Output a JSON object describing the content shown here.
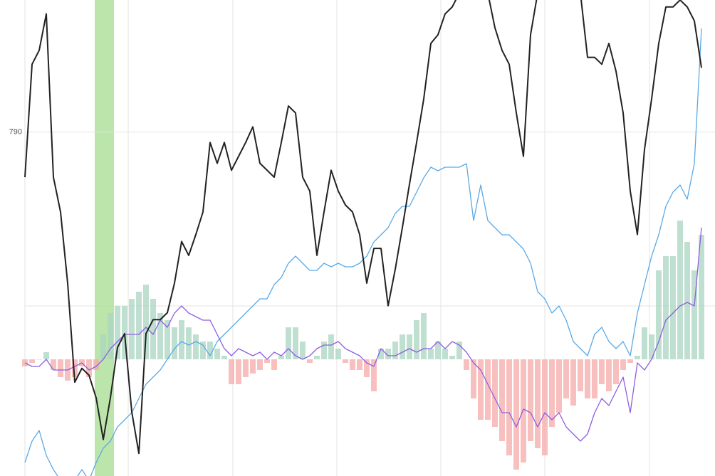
{
  "chart_data": {
    "type": "line",
    "ylim": [
      770.2,
      797.6
    ],
    "yticks": [
      790
    ],
    "y2lim": [
      -1.64,
      5.05
    ],
    "grid": true,
    "series": [
      {
        "type": "bar",
        "axis": "y2",
        "color": "#a9d6c0",
        "negative_color": "#f5a9a9",
        "values": [
          -0.1,
          -0.05,
          0,
          0.1,
          -0.15,
          -0.25,
          -0.3,
          -0.25,
          -0.1,
          -0.25,
          -0.15,
          0.35,
          0.65,
          0.75,
          0.75,
          0.85,
          0.95,
          1.05,
          0.85,
          0.65,
          0.55,
          0.45,
          0.55,
          0.45,
          0.35,
          0.25,
          0.25,
          0.15,
          0.05,
          -0.35,
          -0.35,
          -0.25,
          -0.2,
          -0.15,
          -0.05,
          -0.15,
          0.05,
          0.45,
          0.45,
          0.25,
          -0.05,
          0.05,
          0.25,
          0.35,
          0.15,
          -0.05,
          -0.15,
          -0.15,
          -0.25,
          -0.45,
          0.15,
          0.15,
          0.25,
          0.35,
          0.35,
          0.55,
          0.65,
          0.15,
          0.25,
          0.15,
          0.05,
          0.25,
          -0.15,
          -0.55,
          -0.85,
          -0.85,
          -0.95,
          -1.15,
          -1.35,
          -1.55,
          -1.45,
          -1.15,
          -1.25,
          -1.35,
          -0.95,
          -0.75,
          -0.55,
          -0.65,
          -0.45,
          -0.55,
          -0.55,
          -0.35,
          -0.45,
          -0.35,
          -0.15,
          -0.05,
          0.05,
          0.45,
          0.35,
          1.25,
          1.45,
          1.45,
          1.95,
          1.65,
          1.25,
          1.75
        ]
      },
      {
        "axis": "y2",
        "color": "#5aa9e6",
        "values": [
          -1.45,
          -1.15,
          -1.0,
          -1.35,
          -1.55,
          -1.7,
          -1.7,
          -1.7,
          -1.55,
          -1.7,
          -1.45,
          -1.25,
          -1.15,
          -0.95,
          -0.85,
          -0.75,
          -0.55,
          -0.35,
          -0.25,
          -0.15,
          0,
          0.15,
          0.25,
          0.2,
          0.25,
          0.2,
          0.05,
          0.25,
          0.35,
          0.45,
          0.55,
          0.65,
          0.75,
          0.85,
          0.85,
          1.05,
          1.15,
          1.35,
          1.45,
          1.35,
          1.25,
          1.25,
          1.35,
          1.3,
          1.35,
          1.3,
          1.3,
          1.35,
          1.45,
          1.65,
          1.75,
          1.85,
          2.05,
          2.15,
          2.15,
          2.35,
          2.55,
          2.7,
          2.65,
          2.7,
          2.7,
          2.7,
          2.75,
          1.95,
          2.45,
          1.95,
          1.85,
          1.75,
          1.75,
          1.65,
          1.55,
          1.35,
          0.95,
          0.85,
          0.65,
          0.75,
          0.55,
          0.25,
          0.15,
          0.05,
          0.35,
          0.45,
          0.25,
          0.15,
          0.25,
          0.05,
          0.65,
          1.05,
          1.45,
          1.75,
          2.15,
          2.35,
          2.45,
          2.25,
          2.75,
          4.65
        ]
      },
      {
        "axis": "y2",
        "color": "#8e5ee0",
        "values": [
          -0.05,
          -0.1,
          -0.1,
          0,
          -0.15,
          -0.15,
          -0.15,
          -0.1,
          -0.05,
          -0.15,
          -0.1,
          0,
          0.15,
          0.25,
          0.35,
          0.35,
          0.35,
          0.45,
          0.35,
          0.55,
          0.45,
          0.65,
          0.75,
          0.65,
          0.6,
          0.55,
          0.55,
          0.35,
          0.15,
          0.05,
          0.15,
          0.1,
          0.05,
          0.1,
          0,
          0.1,
          0.05,
          0.15,
          0.05,
          0,
          0.05,
          0.15,
          0.2,
          0.2,
          0.25,
          0.15,
          0.1,
          0.05,
          -0.05,
          -0.1,
          0.15,
          0.05,
          0.05,
          0.1,
          0.15,
          0.1,
          0.15,
          0.15,
          0.25,
          0.15,
          0.25,
          0.2,
          0.1,
          -0.05,
          -0.15,
          -0.35,
          -0.55,
          -0.75,
          -0.75,
          -0.95,
          -0.7,
          -0.75,
          -0.95,
          -0.75,
          -0.85,
          -0.75,
          -0.95,
          -1.05,
          -1.15,
          -1.05,
          -0.75,
          -0.55,
          -0.65,
          -0.45,
          -0.25,
          -0.75,
          -0.05,
          -0.15,
          0,
          0.25,
          0.55,
          0.65,
          0.75,
          0.8,
          0.75,
          1.85
        ]
      },
      {
        "color": "#222222",
        "values": [
          787.4,
          793.9,
          794.7,
          796.8,
          787.4,
          785.4,
          781.3,
          775.6,
          776.4,
          776.0,
          774.7,
          772.3,
          774.7,
          777.6,
          778.4,
          773.9,
          771.5,
          778.4,
          779.2,
          779.2,
          779.6,
          781.3,
          783.7,
          782.9,
          784.1,
          785.4,
          789.4,
          788.2,
          789.4,
          787.8,
          788.6,
          789.4,
          790.3,
          788.2,
          787.8,
          787.4,
          789.4,
          791.5,
          791.1,
          787.4,
          786.6,
          782.9,
          785.4,
          787.8,
          786.6,
          785.8,
          785.4,
          784.1,
          781.3,
          783.3,
          783.3,
          780.0,
          782.1,
          784.5,
          787.0,
          789.4,
          791.9,
          795.1,
          795.6,
          796.8,
          797.2,
          798.0,
          798.0,
          798.0,
          798.0,
          798.0,
          796.0,
          794.7,
          793.9,
          791.1,
          788.6,
          795.6,
          798.0,
          798.0,
          798.0,
          798.0,
          798.0,
          798.0,
          798.0,
          794.3,
          794.3,
          793.9,
          795.1,
          793.5,
          791.1,
          786.6,
          784.1,
          789.0,
          791.9,
          795.1,
          797.2,
          797.2,
          797.6,
          797.2,
          796.4,
          793.7
        ]
      }
    ]
  }
}
